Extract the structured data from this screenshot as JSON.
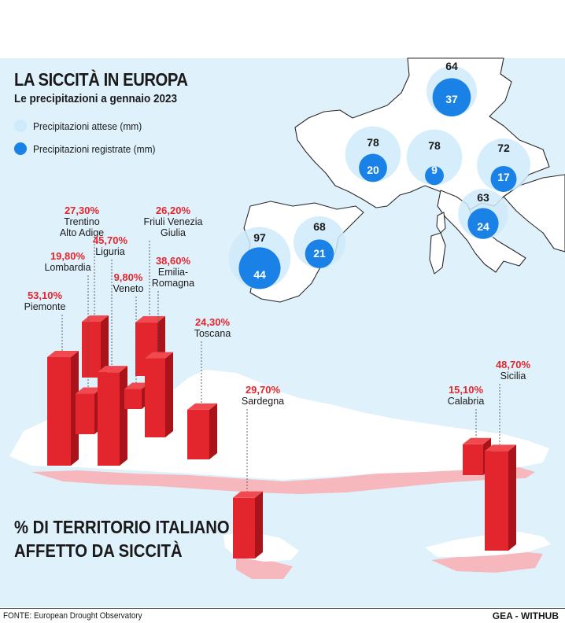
{
  "header": {
    "title": "LA SICCITÀ IN EUROPA",
    "subtitle": "Le precipitazioni a gennaio 2023"
  },
  "legend": {
    "expected_label": "Precipitazioni attese (mm)",
    "recorded_label": "Precipitazioni registrate (mm)",
    "expected_color": "#cfeafa",
    "recorded_color": "#1a82e6"
  },
  "precipitation_sites": [
    {
      "id": "germany",
      "expected": "64",
      "recorded": "37",
      "expected_value": 64,
      "recorded_value": 37
    },
    {
      "id": "france",
      "expected": "78",
      "recorded": "20",
      "expected_value": 78,
      "recorded_value": 20
    },
    {
      "id": "switzerland",
      "expected": "78",
      "recorded": "9",
      "expected_value": 78,
      "recorded_value": 9
    },
    {
      "id": "slovenia",
      "expected": "72",
      "recorded": "17",
      "expected_value": 72,
      "recorded_value": 17
    },
    {
      "id": "central-italy",
      "expected": "63",
      "recorded": "24",
      "expected_value": 63,
      "recorded_value": 24
    },
    {
      "id": "portugal",
      "expected": "97",
      "recorded": "44",
      "expected_value": 97,
      "recorded_value": 44
    },
    {
      "id": "spain",
      "expected": "68",
      "recorded": "21",
      "expected_value": 68,
      "recorded_value": 21
    }
  ],
  "drought_section": {
    "line1": "% DI TERRITORIO ITALIANO",
    "line2": "AFFETTO DA SICCITÀ",
    "bar_color": "#e3262d"
  },
  "regions": [
    {
      "id": "piemonte",
      "name": "Piemonte",
      "pct": "53,10%",
      "value": 53.1
    },
    {
      "id": "lombardia",
      "name": "Lombardia",
      "pct": "19,80%",
      "value": 19.8
    },
    {
      "id": "trentino",
      "name": "Trentino\nAlto Adige",
      "name1": "Trentino",
      "name2": "Alto Adige",
      "pct": "27,30%",
      "value": 27.3
    },
    {
      "id": "liguria",
      "name": "Liguria",
      "pct": "45,70%",
      "value": 45.7
    },
    {
      "id": "veneto",
      "name": "Veneto",
      "pct": "9,80%",
      "value": 9.8
    },
    {
      "id": "friuli",
      "name1": "Friuli Venezia",
      "name2": "Giulia",
      "pct": "26,20%",
      "value": 26.2
    },
    {
      "id": "emilia",
      "name1": "Emilia-",
      "name2": "Romagna",
      "pct": "38,60%",
      "value": 38.6
    },
    {
      "id": "toscana",
      "name": "Toscana",
      "pct": "24,30%",
      "value": 24.3
    },
    {
      "id": "sardegna",
      "name": "Sardegna",
      "pct": "29,70%",
      "value": 29.7
    },
    {
      "id": "calabria",
      "name": "Calabria",
      "pct": "15,10%",
      "value": 15.1
    },
    {
      "id": "sicilia",
      "name": "Sicilia",
      "pct": "48,70%",
      "value": 48.7
    }
  ],
  "footer": {
    "source": "FONTE: European Drought Observatory",
    "credit": "GEA - WITHUB"
  }
}
